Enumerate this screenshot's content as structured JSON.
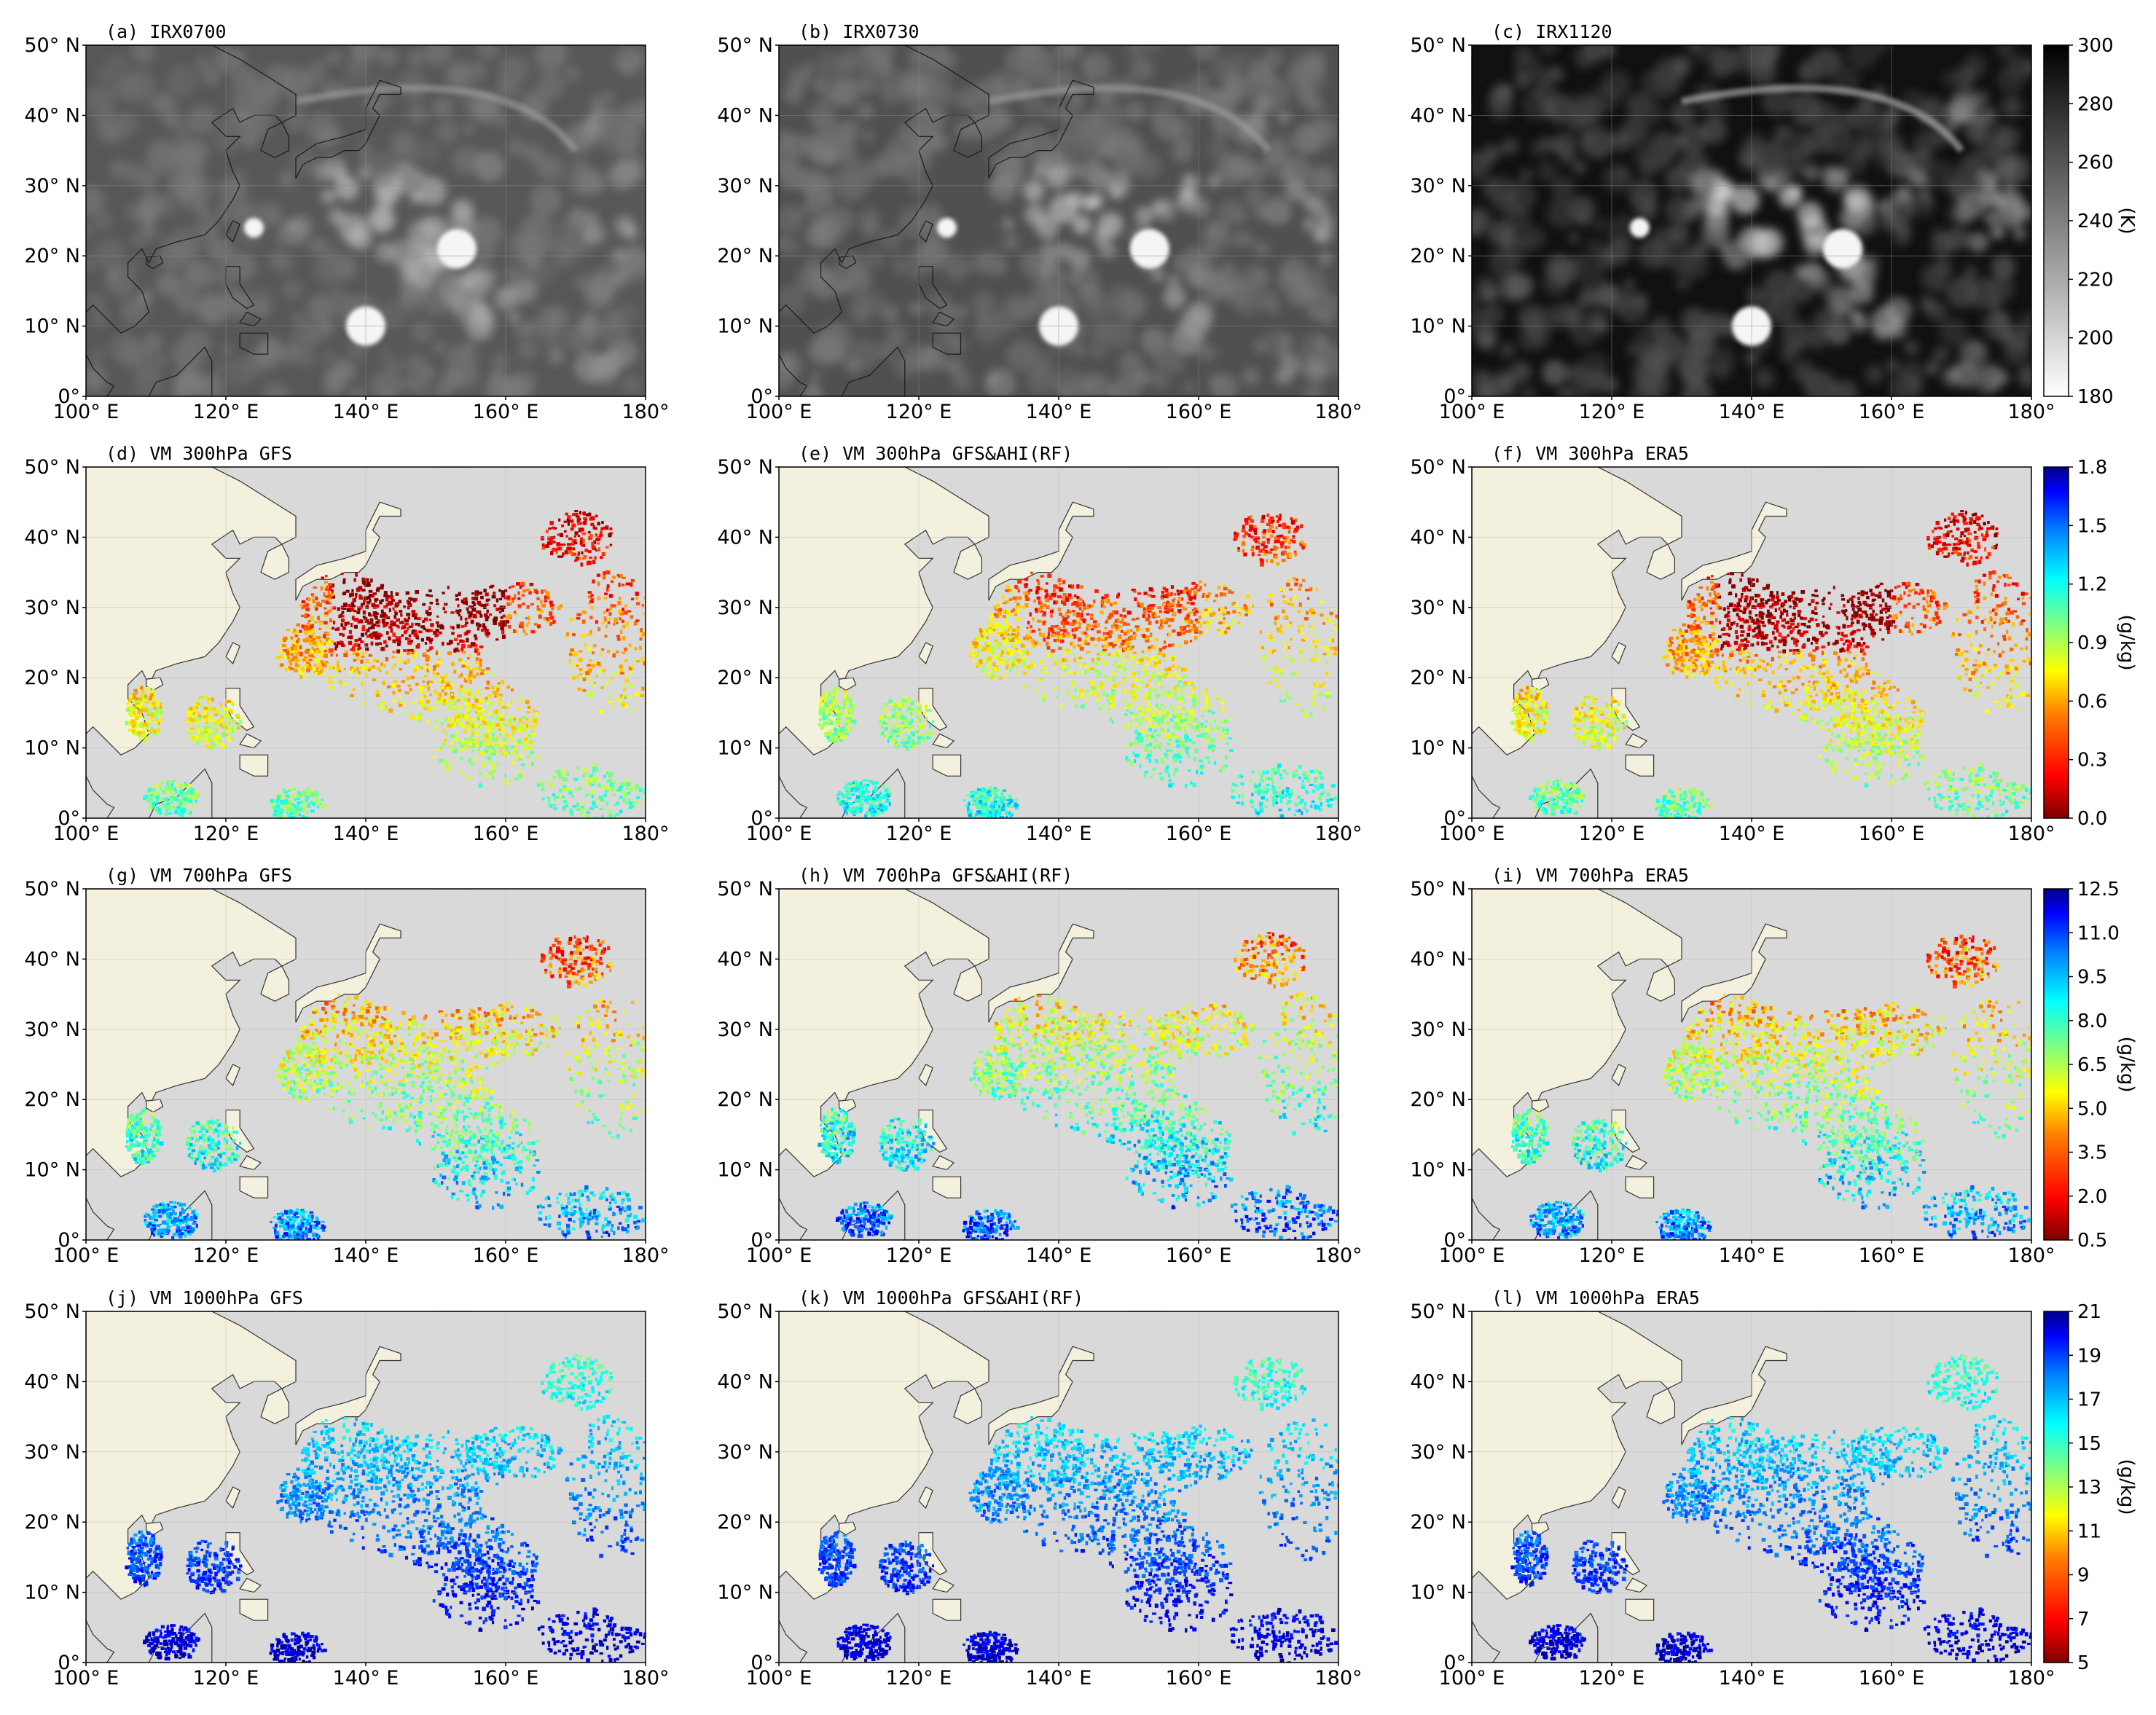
{
  "map_extent": {
    "lon": [
      100,
      180
    ],
    "lat": [
      0,
      50
    ]
  },
  "x_ticks": [
    "100° E",
    "120° E",
    "140° E",
    "160° E",
    "180°"
  ],
  "y_ticks": [
    "0°",
    "10° N",
    "20° N",
    "30° N",
    "40° N",
    "50° N"
  ],
  "colors": {
    "land": "#f3f0dd",
    "ocean": "#d9d9d9",
    "jet": [
      "#800000",
      "#ff0000",
      "#ff8000",
      "#ffff00",
      "#80ff80",
      "#00ffff",
      "#0080ff",
      "#0000ff",
      "#00008b"
    ],
    "gray": [
      "#ffffff",
      "#000000"
    ]
  },
  "rows": [
    {
      "variable": "IR brightness temperature",
      "colormap": "gray",
      "colorbar": {
        "ticks": [
          "300",
          "280",
          "260",
          "240",
          "220",
          "200",
          "180"
        ],
        "unit": "(K)"
      },
      "panels": [
        {
          "label": "(a) IRX0700"
        },
        {
          "label": "(b) IRX0730"
        },
        {
          "label": "(c) IRX1120"
        }
      ]
    },
    {
      "variable": "VM 300hPa",
      "colormap": "jet",
      "colorbar": {
        "ticks": [
          "1.8",
          "1.5",
          "1.2",
          "0.9",
          "0.6",
          "0.3",
          "0.0"
        ],
        "unit": "(g/kg)"
      },
      "panels": [
        {
          "label": "(d) VM 300hPa GFS"
        },
        {
          "label": "(e) VM 300hPa GFS&AHI(RF)"
        },
        {
          "label": "(f) VM 300hPa ERA5"
        }
      ]
    },
    {
      "variable": "VM 700hPa",
      "colormap": "jet",
      "colorbar": {
        "ticks": [
          "12.5",
          "11.0",
          "9.5",
          "8.0",
          "6.5",
          "5.0",
          "3.5",
          "2.0",
          "0.5"
        ],
        "unit": "(g/kg)"
      },
      "panels": [
        {
          "label": "(g) VM 700hPa GFS"
        },
        {
          "label": "(h) VM 700hPa GFS&AHI(RF)"
        },
        {
          "label": "(i) VM 700hPa ERA5"
        }
      ]
    },
    {
      "variable": "VM 1000hPa",
      "colormap": "jet",
      "colorbar": {
        "ticks": [
          "21",
          "19",
          "17",
          "15",
          "13",
          "11",
          "9",
          "7",
          "5"
        ],
        "unit": "(g/kg)"
      },
      "panels": [
        {
          "label": "(j) VM 1000hPa GFS"
        },
        {
          "label": "(k) VM 1000hPa GFS&AHI(RF)"
        },
        {
          "label": "(l) VM 1000hPa ERA5"
        }
      ]
    }
  ]
}
